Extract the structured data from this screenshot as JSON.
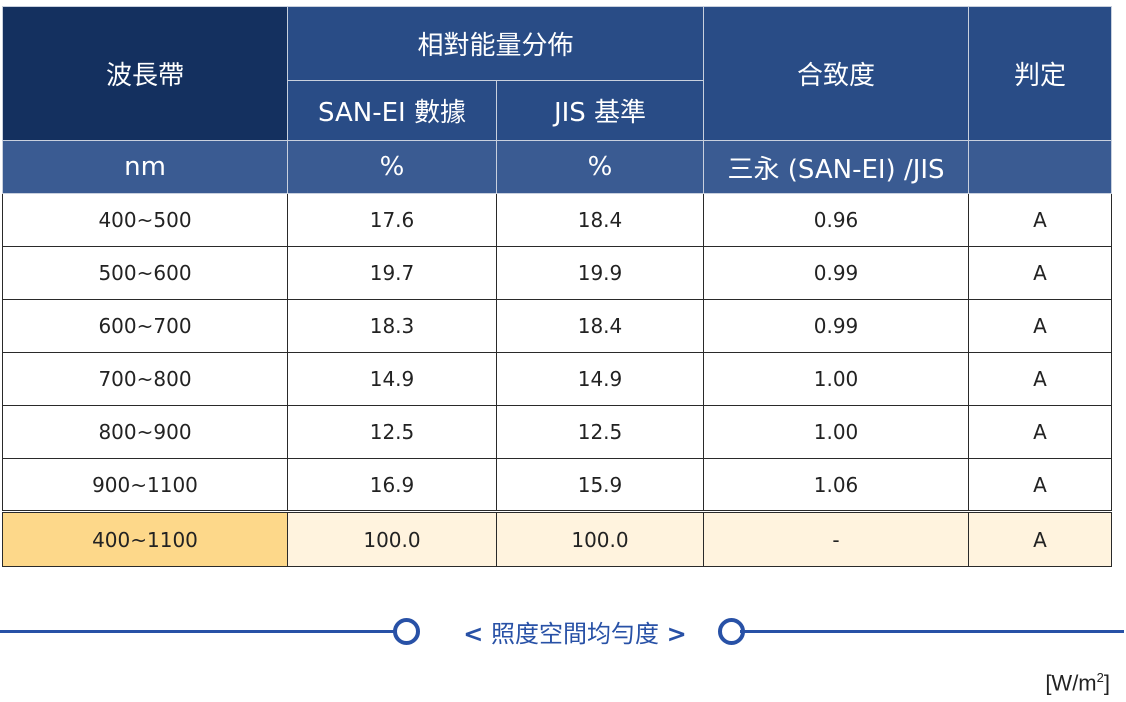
{
  "table": {
    "headers": {
      "band": "波長帶",
      "relative_energy": "相對能量分佈",
      "sanei_data": "SAN-EI 數據",
      "jis_standard": "JIS 基準",
      "match": "合致度",
      "judgement": "判定"
    },
    "units": {
      "band": "nm",
      "sanei": "%",
      "jis": "%",
      "match": "三永 (SAN-EI) /JIS",
      "judgement": ""
    },
    "rows": [
      {
        "band": "400~500",
        "sanei": "17.6",
        "jis": "18.4",
        "match": "0.96",
        "judge": "A"
      },
      {
        "band": "500~600",
        "sanei": "19.7",
        "jis": "19.9",
        "match": "0.99",
        "judge": "A"
      },
      {
        "band": "600~700",
        "sanei": "18.3",
        "jis": "18.4",
        "match": "0.99",
        "judge": "A"
      },
      {
        "band": "700~800",
        "sanei": "14.9",
        "jis": "14.9",
        "match": "1.00",
        "judge": "A"
      },
      {
        "band": "800~900",
        "sanei": "12.5",
        "jis": "12.5",
        "match": "1.00",
        "judge": "A"
      },
      {
        "band": "900~1100",
        "sanei": "16.9",
        "jis": "15.9",
        "match": "1.06",
        "judge": "A"
      }
    ],
    "total": {
      "band": "400~1100",
      "sanei": "100.0",
      "jis": "100.0",
      "match": "-",
      "judge": "A"
    }
  },
  "section": {
    "left_bracket": "<",
    "title": "照度空間均勻度",
    "right_bracket": ">"
  },
  "unit_label": {
    "text": "[W/m",
    "sup": "2",
    "close": "]"
  },
  "colors": {
    "header_dark": "#14305f",
    "header_mid": "#294c86",
    "header_sub": "#3a5b92",
    "band_cell": "#d9dde4",
    "total_band": "#fdd88a",
    "total_row": "#fff3de",
    "accent_blue": "#2851a6",
    "judge_red": "#e00000"
  }
}
